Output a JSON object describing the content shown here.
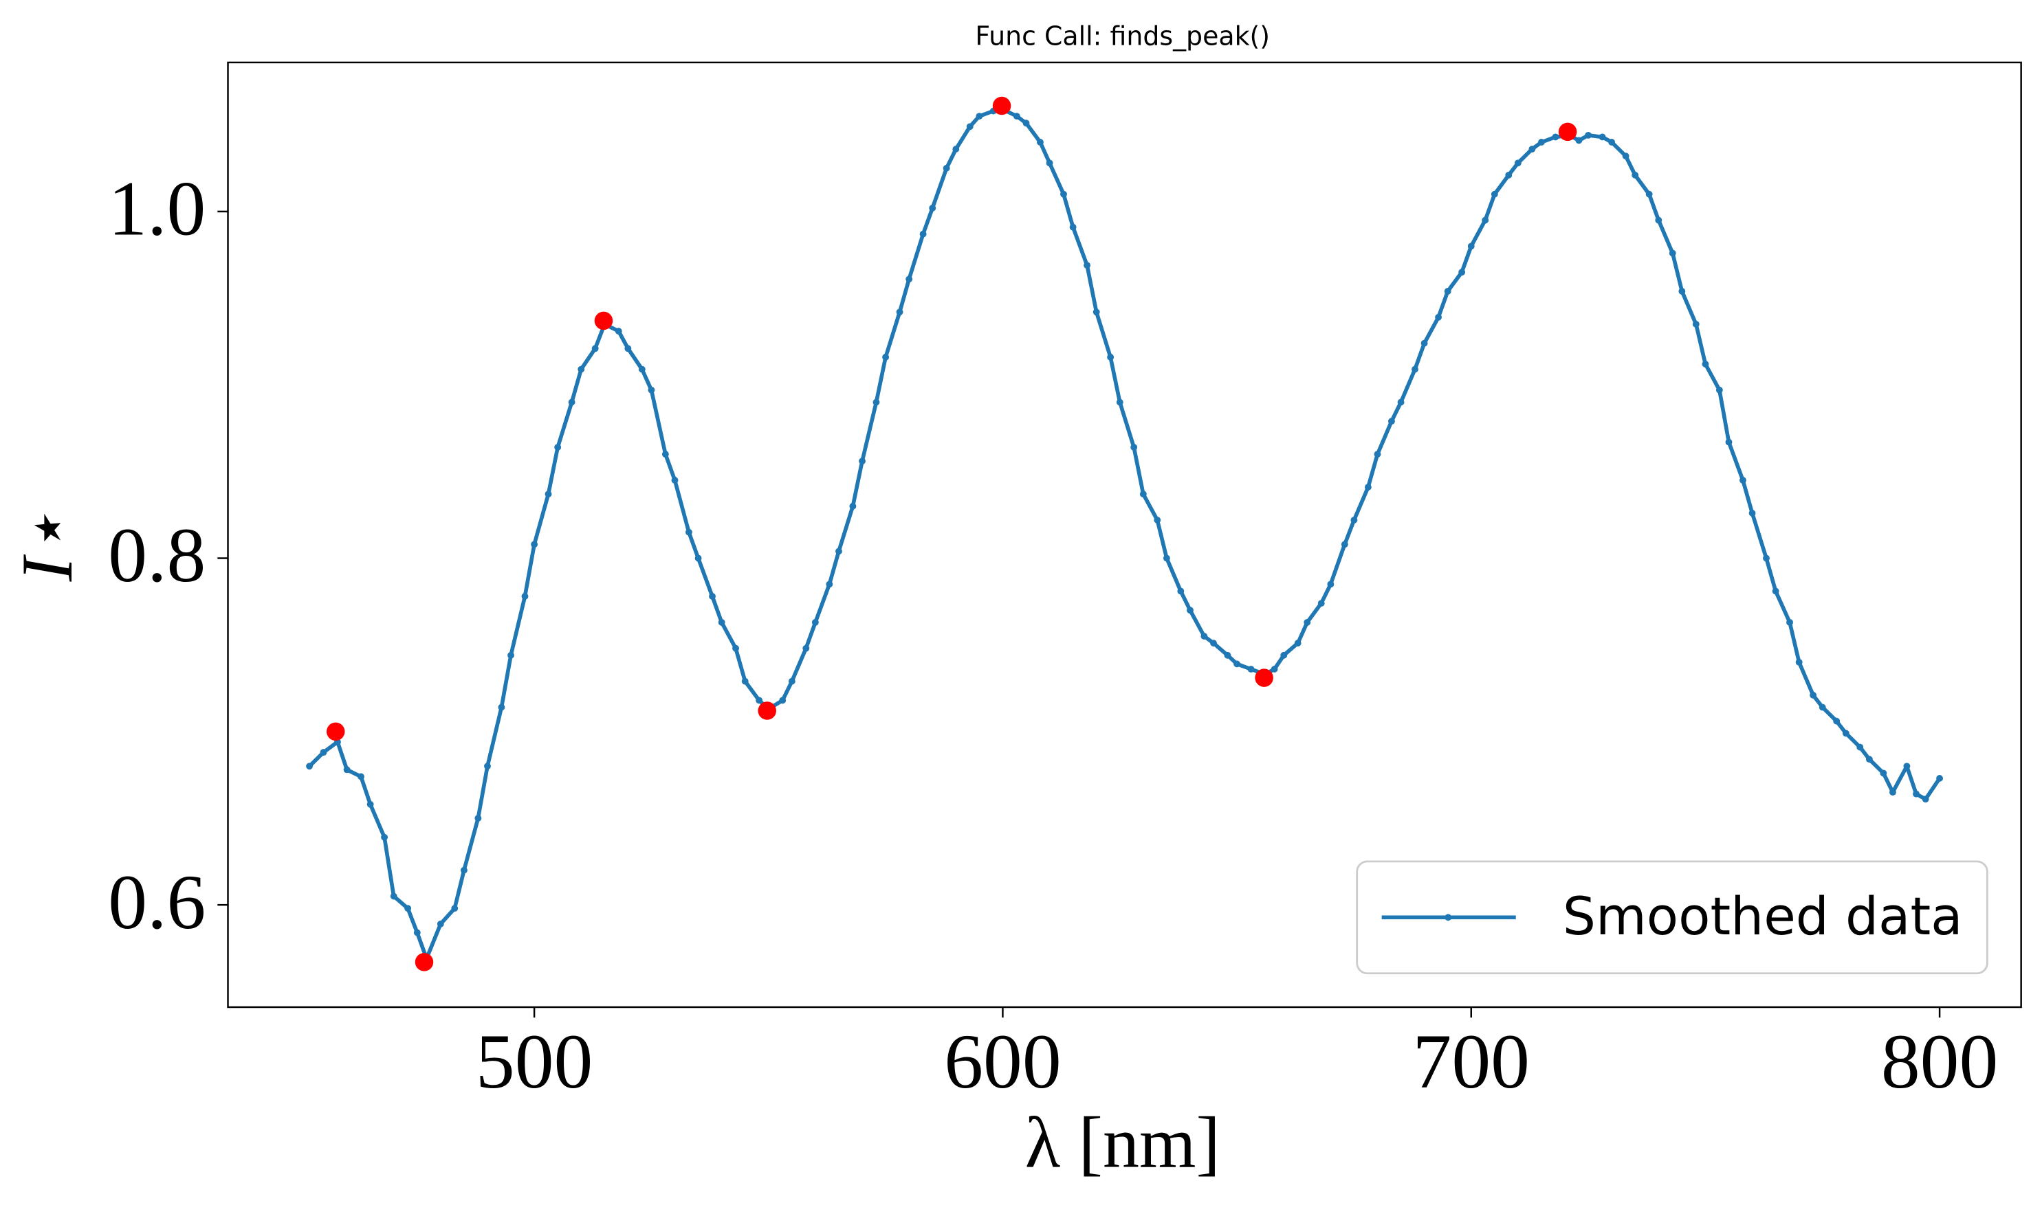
{
  "chart_data": {
    "type": "line",
    "title": "Func Call: finds_peak()",
    "x_label": "λ [nm]",
    "y_label": "I⋆",
    "xlim": [
      434.6,
      817.4
    ],
    "ylim": [
      0.541,
      1.086
    ],
    "xticks": [
      500,
      600,
      700,
      800
    ],
    "yticks": [
      0.6,
      0.8,
      {
        "value": 1,
        "label": "1.0"
      }
    ],
    "grid": false,
    "legend": "lower right",
    "series": [
      {
        "name": "Smoothed data",
        "color": "#1f77b4",
        "marker": "dot",
        "x": [
          452,
          455,
          458,
          460,
          463,
          465,
          468,
          470,
          473,
          475,
          477,
          480,
          483,
          485,
          488,
          490,
          493,
          495,
          498,
          500,
          503,
          505,
          508,
          510,
          513,
          515,
          518,
          520,
          523,
          525,
          528,
          530,
          533,
          535,
          538,
          540,
          543,
          545,
          548,
          550,
          553,
          555,
          558,
          560,
          563,
          565,
          568,
          570,
          573,
          575,
          578,
          580,
          583,
          585,
          588,
          590,
          593,
          595,
          598,
          600,
          603,
          605,
          608,
          610,
          613,
          615,
          618,
          620,
          623,
          625,
          628,
          630,
          633,
          635,
          638,
          640,
          643,
          645,
          648,
          650,
          653,
          656,
          658,
          660,
          663,
          665,
          668,
          670,
          673,
          675,
          678,
          680,
          683,
          685,
          688,
          690,
          693,
          695,
          698,
          700,
          703,
          705,
          708,
          710,
          713,
          715,
          718,
          721,
          723,
          725,
          728,
          730,
          733,
          735,
          738,
          740,
          743,
          745,
          748,
          750,
          753,
          755,
          758,
          760,
          763,
          765,
          768,
          770,
          773,
          775,
          778,
          780,
          783,
          785,
          788,
          790,
          793,
          795,
          797,
          800
        ],
        "values": [
          0.68,
          0.688,
          0.694,
          0.678,
          0.674,
          0.658,
          0.639,
          0.605,
          0.598,
          0.584,
          0.569,
          0.589,
          0.598,
          0.62,
          0.65,
          0.68,
          0.714,
          0.744,
          0.778,
          0.808,
          0.837,
          0.864,
          0.89,
          0.909,
          0.921,
          0.935,
          0.931,
          0.921,
          0.909,
          0.897,
          0.86,
          0.845,
          0.815,
          0.8,
          0.778,
          0.763,
          0.748,
          0.729,
          0.718,
          0.713,
          0.718,
          0.729,
          0.748,
          0.763,
          0.785,
          0.804,
          0.83,
          0.856,
          0.89,
          0.916,
          0.942,
          0.961,
          0.987,
          1.002,
          1.025,
          1.036,
          1.049,
          1.055,
          1.058,
          1.059,
          1.055,
          1.051,
          1.04,
          1.028,
          1.01,
          0.991,
          0.969,
          0.942,
          0.916,
          0.89,
          0.864,
          0.837,
          0.822,
          0.8,
          0.781,
          0.77,
          0.755,
          0.751,
          0.744,
          0.739,
          0.736,
          0.733,
          0.736,
          0.744,
          0.751,
          0.763,
          0.774,
          0.785,
          0.808,
          0.822,
          0.841,
          0.86,
          0.879,
          0.89,
          0.909,
          0.924,
          0.939,
          0.954,
          0.965,
          0.98,
          0.995,
          1.01,
          1.021,
          1.028,
          1.036,
          1.04,
          1.043,
          1.044,
          1.041,
          1.044,
          1.043,
          1.04,
          1.032,
          1.021,
          1.01,
          0.995,
          0.976,
          0.954,
          0.935,
          0.912,
          0.897,
          0.867,
          0.845,
          0.826,
          0.8,
          0.781,
          0.763,
          0.74,
          0.721,
          0.714,
          0.706,
          0.699,
          0.691,
          0.684,
          0.676,
          0.665,
          0.68,
          0.664,
          0.661,
          0.673
        ]
      },
      {
        "color": "#ff0000",
        "marker": "peak",
        "x": [
          457.6,
          476.5,
          514.8,
          549.7,
          599.8,
          655.8,
          720.6
        ],
        "values": [
          0.7,
          0.567,
          0.937,
          0.712,
          1.061,
          0.731,
          1.046
        ]
      }
    ]
  }
}
